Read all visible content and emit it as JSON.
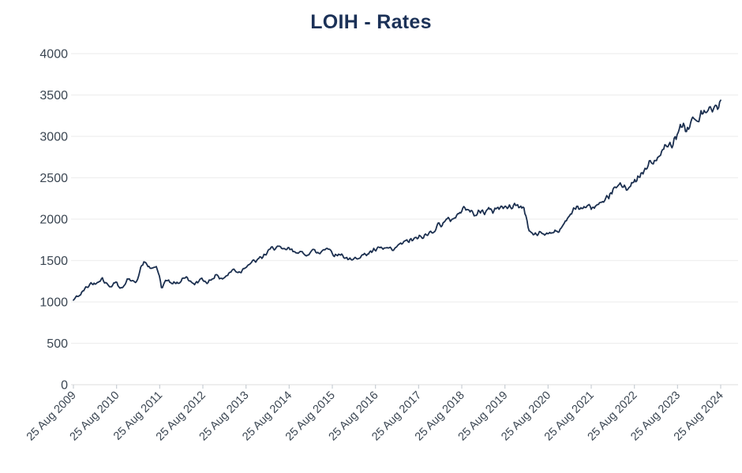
{
  "title": "LOIH - Rates",
  "colors": {
    "title": "#1b3157",
    "line": "#1b2f4f",
    "grid": "#efefef",
    "axis": "#e4e4e4",
    "tick_text": "#3b4652"
  },
  "chart_data": {
    "type": "line",
    "title": "LOIH - Rates",
    "xlabel": "",
    "ylabel": "",
    "legend": "none",
    "grid": "horizontal",
    "ylim": [
      0,
      4000
    ],
    "y_ticks": [
      0,
      500,
      1000,
      1500,
      2000,
      2500,
      3000,
      3500,
      4000
    ],
    "x_tick_labels": [
      "25 Aug 2009",
      "25 Aug 2010",
      "25 Aug 2011",
      "25 Aug 2012",
      "25 Aug 2013",
      "25 Aug 2014",
      "25 Aug 2015",
      "25 Aug 2016",
      "25 Aug 2017",
      "25 Aug 2018",
      "25 Aug 2019",
      "25 Aug 2020",
      "25 Aug 2021",
      "25 Aug 2022",
      "25 Aug 2023",
      "25 Aug 2024"
    ],
    "x_years_range": [
      0,
      15
    ],
    "noise_amplitude_frac": 0.02,
    "series": [
      {
        "name": "LOIH",
        "points": [
          [
            0.0,
            1020
          ],
          [
            0.08,
            1065
          ],
          [
            0.17,
            1090
          ],
          [
            0.25,
            1150
          ],
          [
            0.33,
            1185
          ],
          [
            0.42,
            1230
          ],
          [
            0.5,
            1215
          ],
          [
            0.58,
            1260
          ],
          [
            0.67,
            1285
          ],
          [
            0.75,
            1230
          ],
          [
            0.83,
            1185
          ],
          [
            0.92,
            1220
          ],
          [
            1.0,
            1250
          ],
          [
            1.08,
            1150
          ],
          [
            1.17,
            1205
          ],
          [
            1.25,
            1270
          ],
          [
            1.33,
            1255
          ],
          [
            1.42,
            1240
          ],
          [
            1.5,
            1300
          ],
          [
            1.58,
            1440
          ],
          [
            1.67,
            1480
          ],
          [
            1.75,
            1420
          ],
          [
            1.83,
            1390
          ],
          [
            1.92,
            1430
          ],
          [
            2.0,
            1300
          ],
          [
            2.05,
            1150
          ],
          [
            2.12,
            1230
          ],
          [
            2.21,
            1270
          ],
          [
            2.29,
            1215
          ],
          [
            2.37,
            1235
          ],
          [
            2.46,
            1220
          ],
          [
            2.54,
            1290
          ],
          [
            2.62,
            1310
          ],
          [
            2.71,
            1240
          ],
          [
            2.79,
            1215
          ],
          [
            2.87,
            1245
          ],
          [
            2.96,
            1270
          ],
          [
            3.04,
            1250
          ],
          [
            3.12,
            1240
          ],
          [
            3.21,
            1285
          ],
          [
            3.29,
            1320
          ],
          [
            3.37,
            1300
          ],
          [
            3.46,
            1285
          ],
          [
            3.54,
            1310
          ],
          [
            3.62,
            1350
          ],
          [
            3.71,
            1395
          ],
          [
            3.79,
            1370
          ],
          [
            3.87,
            1360
          ],
          [
            3.96,
            1420
          ],
          [
            4.04,
            1450
          ],
          [
            4.12,
            1475
          ],
          [
            4.21,
            1490
          ],
          [
            4.29,
            1510
          ],
          [
            4.37,
            1540
          ],
          [
            4.46,
            1580
          ],
          [
            4.54,
            1620
          ],
          [
            4.62,
            1650
          ],
          [
            4.71,
            1675
          ],
          [
            4.79,
            1640
          ],
          [
            4.87,
            1620
          ],
          [
            4.96,
            1645
          ],
          [
            5.04,
            1625
          ],
          [
            5.12,
            1600
          ],
          [
            5.21,
            1620
          ],
          [
            5.29,
            1580
          ],
          [
            5.37,
            1565
          ],
          [
            5.46,
            1600
          ],
          [
            5.54,
            1625
          ],
          [
            5.62,
            1600
          ],
          [
            5.71,
            1585
          ],
          [
            5.79,
            1640
          ],
          [
            5.87,
            1660
          ],
          [
            5.96,
            1620
          ],
          [
            6.04,
            1580
          ],
          [
            6.12,
            1560
          ],
          [
            6.21,
            1585
          ],
          [
            6.29,
            1540
          ],
          [
            6.37,
            1520
          ],
          [
            6.46,
            1490
          ],
          [
            6.54,
            1535
          ],
          [
            6.62,
            1555
          ],
          [
            6.71,
            1560
          ],
          [
            6.79,
            1580
          ],
          [
            6.87,
            1600
          ],
          [
            6.96,
            1615
          ],
          [
            7.04,
            1630
          ],
          [
            7.12,
            1650
          ],
          [
            7.21,
            1640
          ],
          [
            7.29,
            1650
          ],
          [
            7.37,
            1615
          ],
          [
            7.46,
            1635
          ],
          [
            7.54,
            1690
          ],
          [
            7.62,
            1710
          ],
          [
            7.71,
            1725
          ],
          [
            7.79,
            1745
          ],
          [
            7.87,
            1750
          ],
          [
            7.96,
            1765
          ],
          [
            8.04,
            1780
          ],
          [
            8.12,
            1790
          ],
          [
            8.21,
            1810
          ],
          [
            8.29,
            1850
          ],
          [
            8.37,
            1880
          ],
          [
            8.46,
            1930
          ],
          [
            8.54,
            1950
          ],
          [
            8.62,
            1975
          ],
          [
            8.71,
            1990
          ],
          [
            8.79,
            2010
          ],
          [
            8.87,
            2040
          ],
          [
            8.96,
            2080
          ],
          [
            9.04,
            2120
          ],
          [
            9.12,
            2160
          ],
          [
            9.21,
            2100
          ],
          [
            9.29,
            2030
          ],
          [
            9.37,
            2080
          ],
          [
            9.46,
            2100
          ],
          [
            9.54,
            2090
          ],
          [
            9.62,
            2110
          ],
          [
            9.71,
            2100
          ],
          [
            9.79,
            2130
          ],
          [
            9.87,
            2150
          ],
          [
            9.96,
            2140
          ],
          [
            10.04,
            2135
          ],
          [
            10.12,
            2150
          ],
          [
            10.21,
            2170
          ],
          [
            10.29,
            2160
          ],
          [
            10.37,
            2150
          ],
          [
            10.45,
            2140
          ],
          [
            10.5,
            2000
          ],
          [
            10.56,
            1860
          ],
          [
            10.62,
            1830
          ],
          [
            10.71,
            1800
          ],
          [
            10.79,
            1840
          ],
          [
            10.87,
            1835
          ],
          [
            10.96,
            1820
          ],
          [
            11.04,
            1850
          ],
          [
            11.12,
            1845
          ],
          [
            11.21,
            1835
          ],
          [
            11.29,
            1880
          ],
          [
            11.37,
            1950
          ],
          [
            11.46,
            2030
          ],
          [
            11.54,
            2080
          ],
          [
            11.62,
            2120
          ],
          [
            11.71,
            2145
          ],
          [
            11.79,
            2130
          ],
          [
            11.87,
            2150
          ],
          [
            11.96,
            2140
          ],
          [
            12.04,
            2145
          ],
          [
            12.12,
            2160
          ],
          [
            12.21,
            2180
          ],
          [
            12.29,
            2160
          ],
          [
            12.37,
            2260
          ],
          [
            12.46,
            2320
          ],
          [
            12.54,
            2360
          ],
          [
            12.62,
            2390
          ],
          [
            12.71,
            2420
          ],
          [
            12.79,
            2400
          ],
          [
            12.87,
            2380
          ],
          [
            12.96,
            2420
          ],
          [
            13.04,
            2470
          ],
          [
            13.12,
            2510
          ],
          [
            13.21,
            2560
          ],
          [
            13.29,
            2620
          ],
          [
            13.37,
            2700
          ],
          [
            13.46,
            2680
          ],
          [
            13.54,
            2720
          ],
          [
            13.62,
            2800
          ],
          [
            13.71,
            2880
          ],
          [
            13.79,
            2860
          ],
          [
            13.87,
            2920
          ],
          [
            13.96,
            3020
          ],
          [
            14.04,
            3100
          ],
          [
            14.12,
            3160
          ],
          [
            14.21,
            3060
          ],
          [
            14.29,
            3140
          ],
          [
            14.37,
            3220
          ],
          [
            14.46,
            3180
          ],
          [
            14.54,
            3280
          ],
          [
            14.62,
            3250
          ],
          [
            14.71,
            3320
          ],
          [
            14.79,
            3280
          ],
          [
            14.87,
            3340
          ],
          [
            14.96,
            3390
          ],
          [
            15.0,
            3400
          ]
        ]
      }
    ]
  }
}
